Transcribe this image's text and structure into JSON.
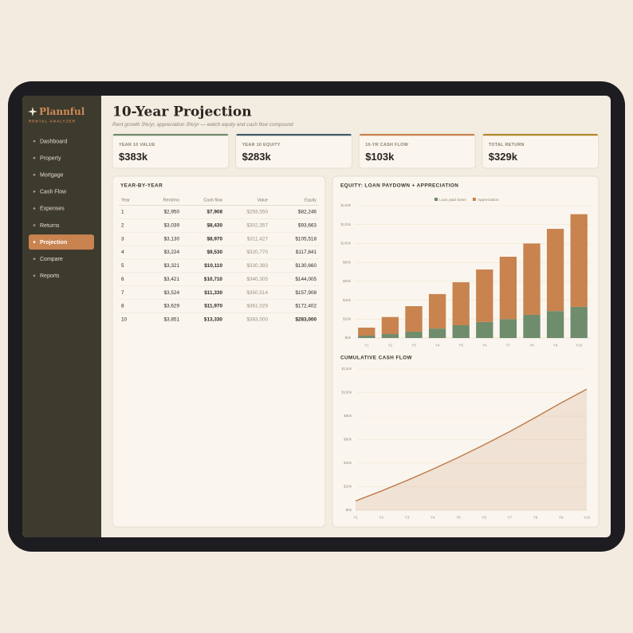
{
  "sidebar": {
    "logo": "Plannful",
    "tagline": "RENTAL ANALYZER",
    "nav": [
      "Dashboard",
      "Property",
      "Mortgage",
      "Cash Flow",
      "Expenses",
      "Returns",
      "Projection",
      "Compare",
      "Reports"
    ],
    "active": "Projection"
  },
  "header": {
    "title": "10-Year Projection",
    "subtitle": "Rent growth 3%/yr, appreciation 3%/yr — watch equity and cash flow compound"
  },
  "kpis": [
    {
      "label": "YEAR 10 VALUE",
      "value": "$383k",
      "color": "#6f8c6c"
    },
    {
      "label": "YEAR 10 EQUITY",
      "value": "$283k",
      "color": "#3f5a6b"
    },
    {
      "label": "10-YR CASH FLOW",
      "value": "$103k",
      "color": "#c8834f"
    },
    {
      "label": "TOTAL RETURN",
      "value": "$329k",
      "color": "#b08b2c"
    }
  ],
  "year_table": {
    "title": "YEAR-BY-YEAR",
    "columns": [
      "Year",
      "Rent/mo",
      "Cash flow",
      "Value",
      "Equity"
    ],
    "rows": [
      [
        "1",
        "$2,950",
        "$7,908",
        "$293,550",
        "$82,246"
      ],
      [
        "2",
        "$3,039",
        "$8,430",
        "$302,357",
        "$93,663"
      ],
      [
        "3",
        "$3,130",
        "$8,970",
        "$311,427",
        "$105,518"
      ],
      [
        "4",
        "$3,224",
        "$9,530",
        "$320,770",
        "$117,841"
      ],
      [
        "5",
        "$3,321",
        "$10,110",
        "$330,393",
        "$130,660"
      ],
      [
        "6",
        "$3,421",
        "$10,710",
        "$340,305",
        "$144,005"
      ],
      [
        "7",
        "$3,524",
        "$11,330",
        "$350,514",
        "$157,908"
      ],
      [
        "8",
        "$3,629",
        "$11,970",
        "$361,029",
        "$172,402"
      ],
      [
        "10",
        "$3,851",
        "$13,330",
        "$383,000",
        "$283,000"
      ]
    ]
  },
  "equity_chart": {
    "type": "stacked-bar",
    "title": "EQUITY: LOAN PAYDOWN + APPRECIATION",
    "categories": [
      "Y1",
      "Y2",
      "Y3",
      "Y4",
      "Y5",
      "Y6",
      "Y7",
      "Y8",
      "Y9",
      "Y10"
    ],
    "series": [
      {
        "name": "Loan paid down",
        "color": "#6f8c6c",
        "values": [
          2.5,
          4.2,
          6.7,
          10,
          13.5,
          17,
          20,
          24.5,
          28.5,
          33
        ]
      },
      {
        "name": "Appreciation",
        "color": "#c8834f",
        "values": [
          8.5,
          18,
          27,
          36.5,
          45.5,
          55.5,
          66,
          75.5,
          87,
          98
        ]
      }
    ],
    "ylim": [
      0,
      140
    ],
    "yticks": [
      {
        "value": 0,
        "label": "$0k"
      },
      {
        "value": 20,
        "label": "$20k"
      },
      {
        "value": 40,
        "label": "$40k"
      },
      {
        "value": 60,
        "label": "$60k"
      },
      {
        "value": 80,
        "label": "$80k"
      },
      {
        "value": 100,
        "label": "$100k"
      },
      {
        "value": 120,
        "label": "$120k"
      },
      {
        "value": 140,
        "label": "$140k"
      }
    ],
    "grid": true
  },
  "cash_chart": {
    "type": "area",
    "title": "CUMULATIVE CASH FLOW",
    "categories": [
      "Y1",
      "Y2",
      "Y3",
      "Y4",
      "Y5",
      "Y6",
      "Y7",
      "Y8",
      "Y9",
      "Y10"
    ],
    "values": [
      7.9,
      16.3,
      25.3,
      34.8,
      44.9,
      55.6,
      66.9,
      78.9,
      91.3,
      103
    ],
    "color": "#c07a4c",
    "ylim": [
      0,
      120
    ],
    "yticks": [
      {
        "value": 0,
        "label": "$0k"
      },
      {
        "value": 20,
        "label": "$20k"
      },
      {
        "value": 40,
        "label": "$40k"
      },
      {
        "value": 60,
        "label": "$60k"
      },
      {
        "value": 80,
        "label": "$80k"
      },
      {
        "value": 100,
        "label": "$100k"
      },
      {
        "value": 120,
        "label": "$120k"
      }
    ],
    "grid": true
  }
}
